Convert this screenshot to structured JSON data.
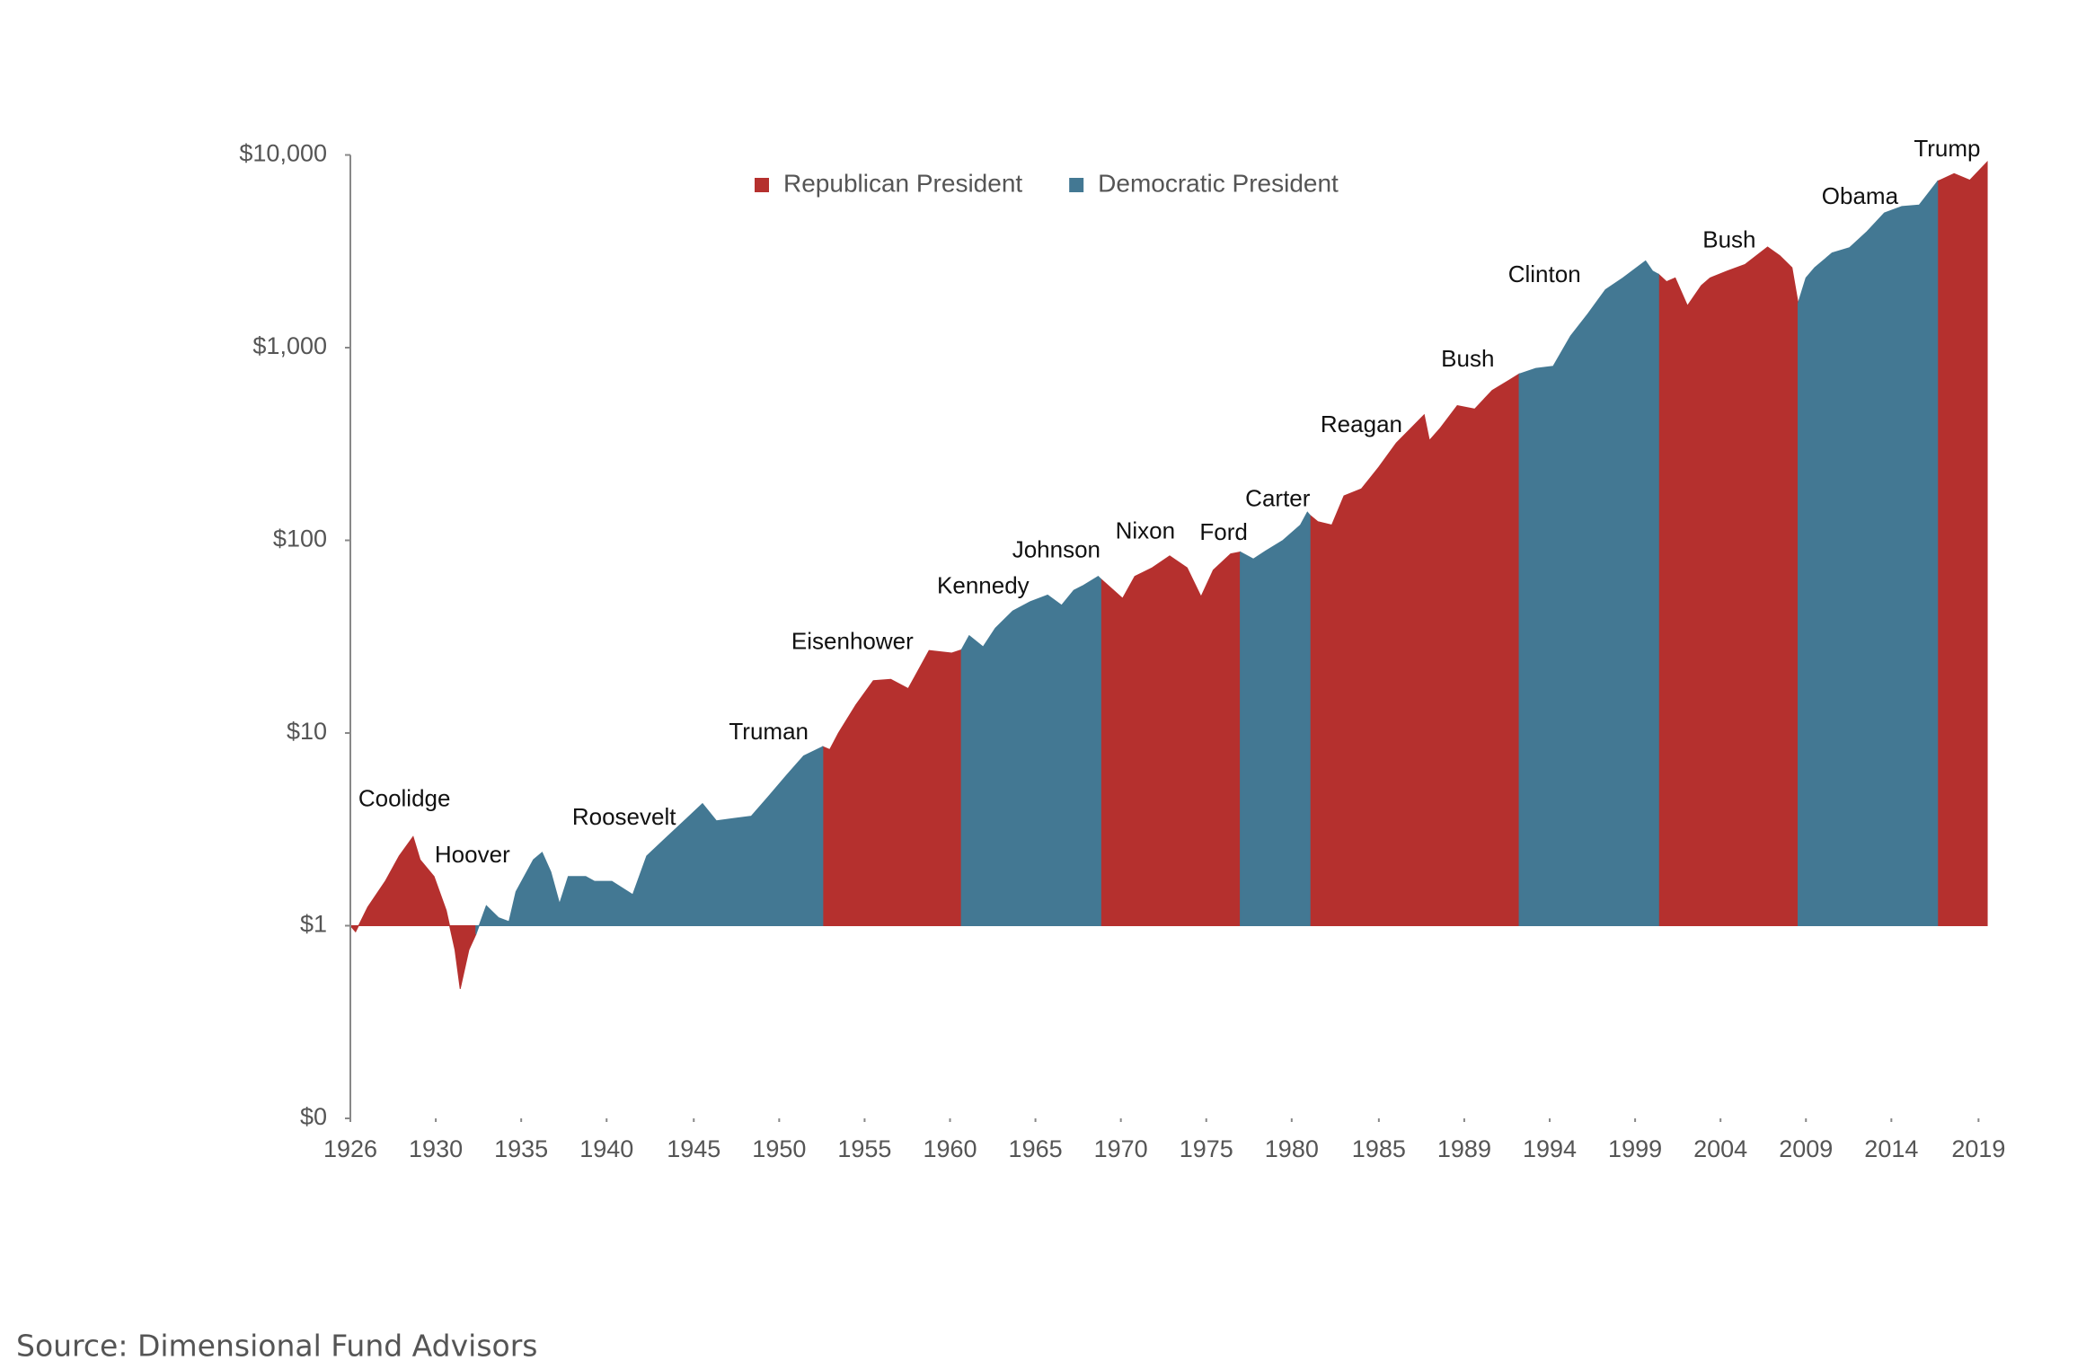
{
  "chart_data": {
    "type": "area",
    "x": [
      1926.0,
      1926.3,
      1927.0,
      1928.0,
      1928.8,
      1929.6,
      1930.0,
      1930.8,
      1931.5,
      1932.0,
      1932.3,
      1932.8,
      1933.2,
      1933.8,
      1934.5,
      1935.1,
      1935.5,
      1936.5,
      1937.0,
      1937.5,
      1938.0,
      1938.5,
      1939.5,
      1940.0,
      1941.0,
      1942.2,
      1943.0,
      1944.0,
      1945.0,
      1946.2,
      1947.0,
      1948.0,
      1949.0,
      1950.0,
      1951.0,
      1952.0,
      1953.1,
      1953.5,
      1954.0,
      1955.0,
      1956.0,
      1957.0,
      1958.0,
      1959.2,
      1960.5,
      1961.05,
      1961.5,
      1962.3,
      1963.0,
      1964.0,
      1965.0,
      1966.0,
      1966.8,
      1967.5,
      1968.0,
      1968.9,
      1969.05,
      1969.5,
      1970.3,
      1971.0,
      1972.0,
      1973.0,
      1974.0,
      1974.8,
      1975.5,
      1976.5,
      1977.05,
      1977.8,
      1978.5,
      1979.5,
      1980.5,
      1980.9,
      1981.05,
      1981.5,
      1982.3,
      1983.0,
      1984.0,
      1985.0,
      1986.0,
      1987.6,
      1987.9,
      1988.5,
      1989.5,
      1990.5,
      1991.5,
      1992.5,
      1993.05,
      1994.0,
      1995.0,
      1996.0,
      1997.0,
      1998.0,
      1999.0,
      2000.3,
      2000.7,
      2001.05,
      2001.5,
      2002.0,
      2002.7,
      2003.5,
      2004.0,
      2005.0,
      2006.0,
      2007.3,
      2008.0,
      2008.7,
      2009.05,
      2009.5,
      2010.0,
      2011.0,
      2012.0,
      2013.0,
      2014.0,
      2015.0,
      2016.0,
      2017.05,
      2018.0,
      2018.9,
      2019.9
    ],
    "series": [
      {
        "name": "Republican President",
        "color": "#b5302e",
        "values": [
          1.0,
          0.93,
          1.25,
          1.7,
          2.3,
          2.9,
          2.2,
          1.8,
          1.2,
          0.75,
          0.47,
          0.75,
          0.9,
          null,
          null,
          null,
          null,
          null,
          null,
          null,
          null,
          null,
          null,
          null,
          null,
          null,
          null,
          null,
          null,
          null,
          null,
          null,
          null,
          null,
          null,
          null,
          8.5,
          8.2,
          10,
          14,
          18.7,
          19,
          17,
          26.8,
          26,
          27,
          null,
          null,
          null,
          null,
          null,
          null,
          null,
          null,
          null,
          null,
          63,
          58,
          50,
          65,
          72,
          83,
          72,
          51,
          70,
          85,
          87,
          null,
          null,
          null,
          null,
          null,
          135,
          125,
          120,
          170,
          185,
          240,
          320,
          448,
          330,
          380,
          500,
          480,
          600,
          680,
          730,
          null,
          null,
          null,
          null,
          null,
          null,
          null,
          null,
          2400,
          2200,
          2300,
          1650,
          2100,
          2300,
          2500,
          2700,
          3330,
          3000,
          2600,
          1700,
          null,
          null,
          null,
          null,
          null,
          null,
          null,
          null,
          7300,
          8000,
          7400,
          9200
        ]
      },
      {
        "name": "Democratic President",
        "color": "#437893",
        "values": [
          null,
          null,
          null,
          null,
          null,
          null,
          null,
          null,
          null,
          null,
          null,
          null,
          0.9,
          1.27,
          1.1,
          1.05,
          1.5,
          2.2,
          2.4,
          1.9,
          1.3,
          1.8,
          1.8,
          1.7,
          1.7,
          1.45,
          2.3,
          2.8,
          3.4,
          4.3,
          3.5,
          3.6,
          3.7,
          4.7,
          6.0,
          7.6,
          8.5,
          null,
          null,
          null,
          null,
          null,
          null,
          null,
          null,
          27,
          32,
          28,
          35,
          43,
          48,
          52,
          46,
          55,
          58,
          65,
          63,
          null,
          null,
          null,
          null,
          null,
          null,
          null,
          null,
          null,
          87,
          80,
          88,
          100,
          120,
          140,
          135,
          null,
          null,
          null,
          null,
          null,
          null,
          null,
          null,
          null,
          null,
          null,
          null,
          null,
          730,
          780,
          800,
          1150,
          1500,
          2000,
          2300,
          2820,
          2500,
          2400,
          null,
          null,
          null,
          null,
          null,
          null,
          null,
          null,
          null,
          null,
          1700,
          2300,
          2600,
          3100,
          3300,
          4000,
          5000,
          5400,
          5500,
          7300,
          null,
          null,
          null
        ]
      }
    ],
    "baseline": 1,
    "log_scale": true,
    "legend": "top",
    "xlim": [
      1926,
      2020
    ],
    "ylim": [
      0.1,
      10000
    ],
    "yticks": [
      {
        "value": 0.1,
        "label": "$0"
      },
      {
        "value": 1,
        "label": "$1"
      },
      {
        "value": 10,
        "label": "$10"
      },
      {
        "value": 100,
        "label": "$100"
      },
      {
        "value": 1000,
        "label": "$1,000"
      },
      {
        "value": 10000,
        "label": "$10,000"
      }
    ],
    "xticks": [
      {
        "value": 1926,
        "label": "1926"
      },
      {
        "value": 1930.9,
        "label": "1930"
      },
      {
        "value": 1935.8,
        "label": "1935"
      },
      {
        "value": 1940.7,
        "label": "1940"
      },
      {
        "value": 1945.7,
        "label": "1945"
      },
      {
        "value": 1950.6,
        "label": "1950"
      },
      {
        "value": 1955.5,
        "label": "1955"
      },
      {
        "value": 1960.4,
        "label": "1960"
      },
      {
        "value": 1965.3,
        "label": "1965"
      },
      {
        "value": 1970.2,
        "label": "1970"
      },
      {
        "value": 1975.1,
        "label": "1975"
      },
      {
        "value": 1980.0,
        "label": "1980"
      },
      {
        "value": 1985.0,
        "label": "1985"
      },
      {
        "value": 1989.9,
        "label": "1989"
      },
      {
        "value": 1994.8,
        "label": "1994"
      },
      {
        "value": 1999.7,
        "label": "1999"
      },
      {
        "value": 2004.6,
        "label": "2004"
      },
      {
        "value": 2009.5,
        "label": "2009"
      },
      {
        "value": 2014.4,
        "label": "2014"
      },
      {
        "value": 2019.4,
        "label": "2019"
      }
    ],
    "annotations": [
      {
        "text": "Coolidge",
        "x": 1929.1,
        "y": 4.5
      },
      {
        "text": "Hoover",
        "x": 1933.0,
        "y": 2.3
      },
      {
        "text": "Roosevelt",
        "x": 1941.7,
        "y": 3.6
      },
      {
        "text": "Truman",
        "x": 1950.0,
        "y": 10
      },
      {
        "text": "Eisenhower",
        "x": 1954.8,
        "y": 29.4
      },
      {
        "text": "Kennedy",
        "x": 1962.3,
        "y": 57
      },
      {
        "text": "Johnson",
        "x": 1966.5,
        "y": 88
      },
      {
        "text": "Nixon",
        "x": 1971.6,
        "y": 110
      },
      {
        "text": "Ford",
        "x": 1976.1,
        "y": 108
      },
      {
        "text": "Carter",
        "x": 1979.2,
        "y": 162
      },
      {
        "text": "Reagan",
        "x": 1984.0,
        "y": 392
      },
      {
        "text": "Bush",
        "x": 1990.1,
        "y": 860
      },
      {
        "text": "Clinton",
        "x": 1994.5,
        "y": 2360
      },
      {
        "text": "Bush",
        "x": 2005.1,
        "y": 3570
      },
      {
        "text": "Obama",
        "x": 2012.6,
        "y": 6000
      },
      {
        "text": "Trump",
        "x": 2017.6,
        "y": 10600
      }
    ]
  },
  "source": "Source: Dimensional Fund Advisors"
}
